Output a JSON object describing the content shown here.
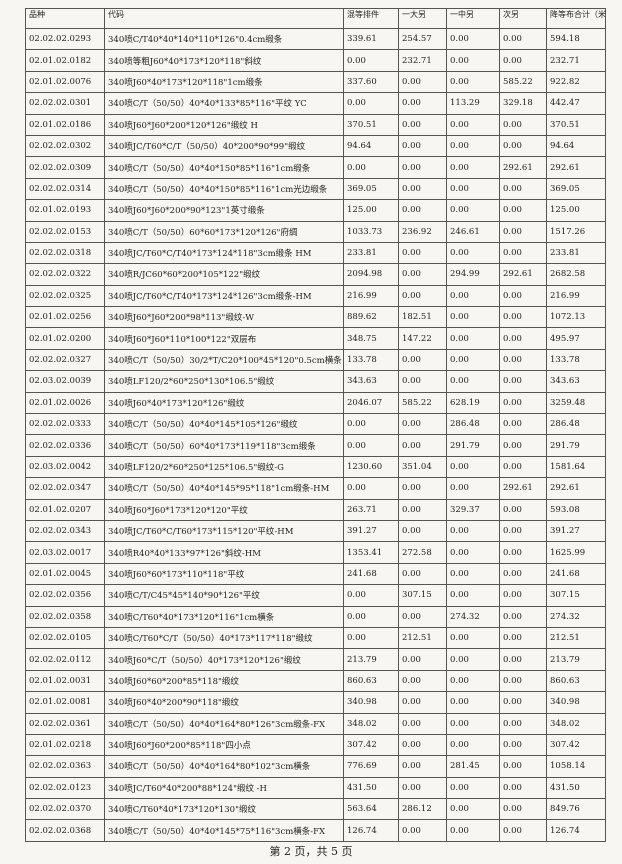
{
  "table": {
    "header": [
      "品种",
      "代码",
      "混等排件",
      "一大另",
      "一中另",
      "次另",
      "降等布合计（米）"
    ],
    "rows": [
      [
        "02.02.02.0293",
        "340喷C/T40*40*140*110*126\"0.4cm缎条",
        "339.61",
        "254.57",
        "0.00",
        "0.00",
        "594.18"
      ],
      [
        "02.01.02.0182",
        "340喷等粗J60*40*173*120*118\"斜纹",
        "0.00",
        "232.71",
        "0.00",
        "0.00",
        "232.71"
      ],
      [
        "02.01.02.0076",
        "340喷J60*40*173*120*118\"1cm缎条",
        "337.60",
        "0.00",
        "0.00",
        "585.22",
        "922.82"
      ],
      [
        "02.02.02.0301",
        "340喷C/T（50/50）40*40*133*85*116\"平纹 YC",
        "0.00",
        "0.00",
        "113.29",
        "329.18",
        "442.47"
      ],
      [
        "02.01.02.0186",
        "340喷J60*J60*200*120*126\"缎纹 H",
        "370.51",
        "0.00",
        "0.00",
        "0.00",
        "370.51"
      ],
      [
        "02.02.02.0302",
        "340喷JC/T60*C/T（50/50）40*200*90*99\"缎纹",
        "94.64",
        "0.00",
        "0.00",
        "0.00",
        "94.64"
      ],
      [
        "02.02.02.0309",
        "340喷C/T（50/50）40*40*150*85*116\"1cm缎条",
        "0.00",
        "0.00",
        "0.00",
        "292.61",
        "292.61"
      ],
      [
        "02.02.02.0314",
        "340喷C/T（50/50）40*40*150*85*116\"1cm光边缎条",
        "369.05",
        "0.00",
        "0.00",
        "0.00",
        "369.05"
      ],
      [
        "02.01.02.0193",
        "340喷J60*J60*200*90*123\"1英寸缎条",
        "125.00",
        "0.00",
        "0.00",
        "0.00",
        "125.00"
      ],
      [
        "02.02.02.0153",
        "340喷C/T（50/50）60*60*173*120*126\"府绸",
        "1033.73",
        "236.92",
        "246.61",
        "0.00",
        "1517.26"
      ],
      [
        "02.02.02.0318",
        "340喷JC/T60*C/T40*173*124*118\"3cm缎条 HM",
        "233.81",
        "0.00",
        "0.00",
        "0.00",
        "233.81"
      ],
      [
        "02.02.02.0322",
        "340喷R/JC60*60*200*105*122\"缎纹",
        "2094.98",
        "0.00",
        "294.99",
        "292.61",
        "2682.58"
      ],
      [
        "02.02.02.0325",
        "340喷JC/T60*C/T40*173*124*126\"3cm缎条-HM",
        "216.99",
        "0.00",
        "0.00",
        "0.00",
        "216.99"
      ],
      [
        "02.01.02.0256",
        "340喷J60*J60*200*98*113\"缎纹-W",
        "889.62",
        "182.51",
        "0.00",
        "0.00",
        "1072.13"
      ],
      [
        "02.01.02.0200",
        "340喷J60*J60*110*100*122\"双层布",
        "348.75",
        "147.22",
        "0.00",
        "0.00",
        "495.97"
      ],
      [
        "02.02.02.0327",
        "340喷C/T（50/50）30/2*T/C20*100*45*120\"0.5cm横条",
        "133.78",
        "0.00",
        "0.00",
        "0.00",
        "133.78"
      ],
      [
        "02.03.02.0039",
        "340喷LF120/2*60*250*130*106.5\"缎纹",
        "343.63",
        "0.00",
        "0.00",
        "0.00",
        "343.63"
      ],
      [
        "02.01.02.0026",
        "340喷J60*40*173*120*126\"缎纹",
        "2046.07",
        "585.22",
        "628.19",
        "0.00",
        "3259.48"
      ],
      [
        "02.02.02.0333",
        "340喷C/T（50/50）40*40*145*105*126\"缎纹",
        "0.00",
        "0.00",
        "286.48",
        "0.00",
        "286.48"
      ],
      [
        "02.02.02.0336",
        "340喷C/T（50/50）60*40*173*119*118\"3cm缎条",
        "0.00",
        "0.00",
        "291.79",
        "0.00",
        "291.79"
      ],
      [
        "02.03.02.0042",
        "340喷LF120/2*60*250*125*106.5\"缎纹-G",
        "1230.60",
        "351.04",
        "0.00",
        "0.00",
        "1581.64"
      ],
      [
        "02.02.02.0347",
        "340喷C/T（50/50）40*40*145*95*118\"1cm缎条-HM",
        "0.00",
        "0.00",
        "0.00",
        "292.61",
        "292.61"
      ],
      [
        "02.01.02.0207",
        "340喷J60*J60*173*120*120\"平纹",
        "263.71",
        "0.00",
        "329.37",
        "0.00",
        "593.08"
      ],
      [
        "02.02.02.0343",
        "340喷JC/T60*C/T60*173*115*120\"平纹-HM",
        "391.27",
        "0.00",
        "0.00",
        "0.00",
        "391.27"
      ],
      [
        "02.03.02.0017",
        "340喷R40*40*133*97*126\"斜纹-HM",
        "1353.41",
        "272.58",
        "0.00",
        "0.00",
        "1625.99"
      ],
      [
        "02.01.02.0045",
        "340喷J60*60*173*110*118\"平纹",
        "241.68",
        "0.00",
        "0.00",
        "0.00",
        "241.68"
      ],
      [
        "02.02.02.0356",
        "340喷C/T/C45*45*140*90*126\"平纹",
        "0.00",
        "307.15",
        "0.00",
        "0.00",
        "307.15"
      ],
      [
        "02.02.02.0358",
        "340喷C/T60*40*173*120*116\"1cm横条",
        "0.00",
        "0.00",
        "274.32",
        "0.00",
        "274.32"
      ],
      [
        "02.02.02.0105",
        "340喷C/T60*C/T（50/50）40*173*117*118\"缎纹",
        "0.00",
        "212.51",
        "0.00",
        "0.00",
        "212.51"
      ],
      [
        "02.02.02.0112",
        "340喷J60*C/T（50/50）40*173*120*126\"缎纹",
        "213.79",
        "0.00",
        "0.00",
        "0.00",
        "213.79"
      ],
      [
        "02.01.02.0031",
        "340喷J60*60*200*85*118\"缎纹",
        "860.63",
        "0.00",
        "0.00",
        "0.00",
        "860.63"
      ],
      [
        "02.01.02.0081",
        "340喷J60*40*200*90*118\"缎纹",
        "340.98",
        "0.00",
        "0.00",
        "0.00",
        "340.98"
      ],
      [
        "02.02.02.0361",
        "340喷C/T（50/50）40*40*164*80*126\"3cm缎条-FX",
        "348.02",
        "0.00",
        "0.00",
        "0.00",
        "348.02"
      ],
      [
        "02.01.02.0218",
        "340喷J60*J60*200*85*118\"四小点",
        "307.42",
        "0.00",
        "0.00",
        "0.00",
        "307.42"
      ],
      [
        "02.02.02.0363",
        "340喷C/T（50/50）40*40*164*80*102\"3cm横条",
        "776.69",
        "0.00",
        "281.45",
        "0.00",
        "1058.14"
      ],
      [
        "02.02.02.0123",
        "340喷JC/T60*40*200*88*124\"缎纹 -H",
        "431.50",
        "0.00",
        "0.00",
        "0.00",
        "431.50"
      ],
      [
        "02.02.02.0370",
        "340喷C/T60*40*173*120*130\"缎纹",
        "563.64",
        "286.12",
        "0.00",
        "0.00",
        "849.76"
      ],
      [
        "02.02.02.0368",
        "340喷C/T（50/50）40*40*145*75*116\"3cm横条-FX",
        "126.74",
        "0.00",
        "0.00",
        "0.00",
        "126.74"
      ]
    ]
  },
  "footer": "第 2 页，共 5 页"
}
